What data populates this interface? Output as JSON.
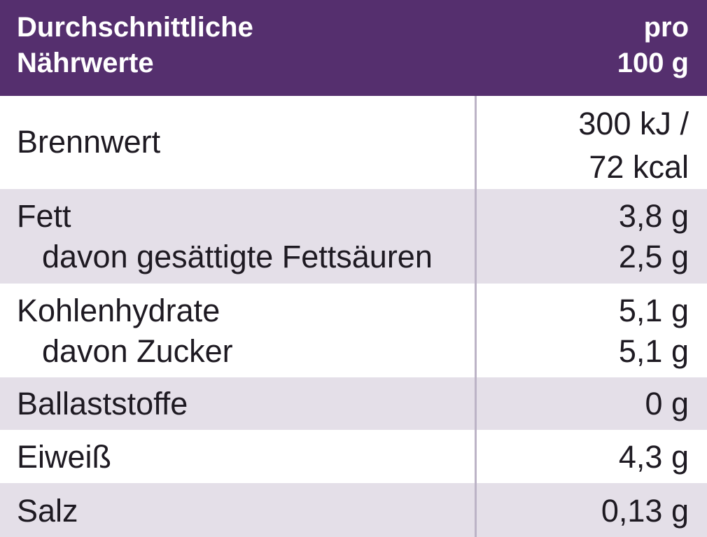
{
  "header": {
    "title_line1": "Durchschnittliche",
    "title_line2": "Nährwerte",
    "per_line1": "pro",
    "per_line2": "100 g"
  },
  "rows": [
    {
      "label": "Brennwert",
      "value_line1": "300 kJ /",
      "value_line2": "72 kcal"
    },
    {
      "label": "Fett",
      "value": "3,8 g",
      "sub_label": "davon gesättigte Fettsäuren",
      "sub_value": "2,5 g"
    },
    {
      "label": "Kohlenhydrate",
      "value": "5,1 g",
      "sub_label": "davon Zucker",
      "sub_value": "5,1 g"
    },
    {
      "label": "Ballaststoffe",
      "value": "0 g"
    },
    {
      "label": "Eiweiß",
      "value": "4,3 g"
    },
    {
      "label": "Salz",
      "value": "0,13 g"
    }
  ],
  "colors": {
    "header_bg": "#552f6e",
    "shaded_row": "#e4dfe8",
    "divider": "#bcb3c6"
  }
}
